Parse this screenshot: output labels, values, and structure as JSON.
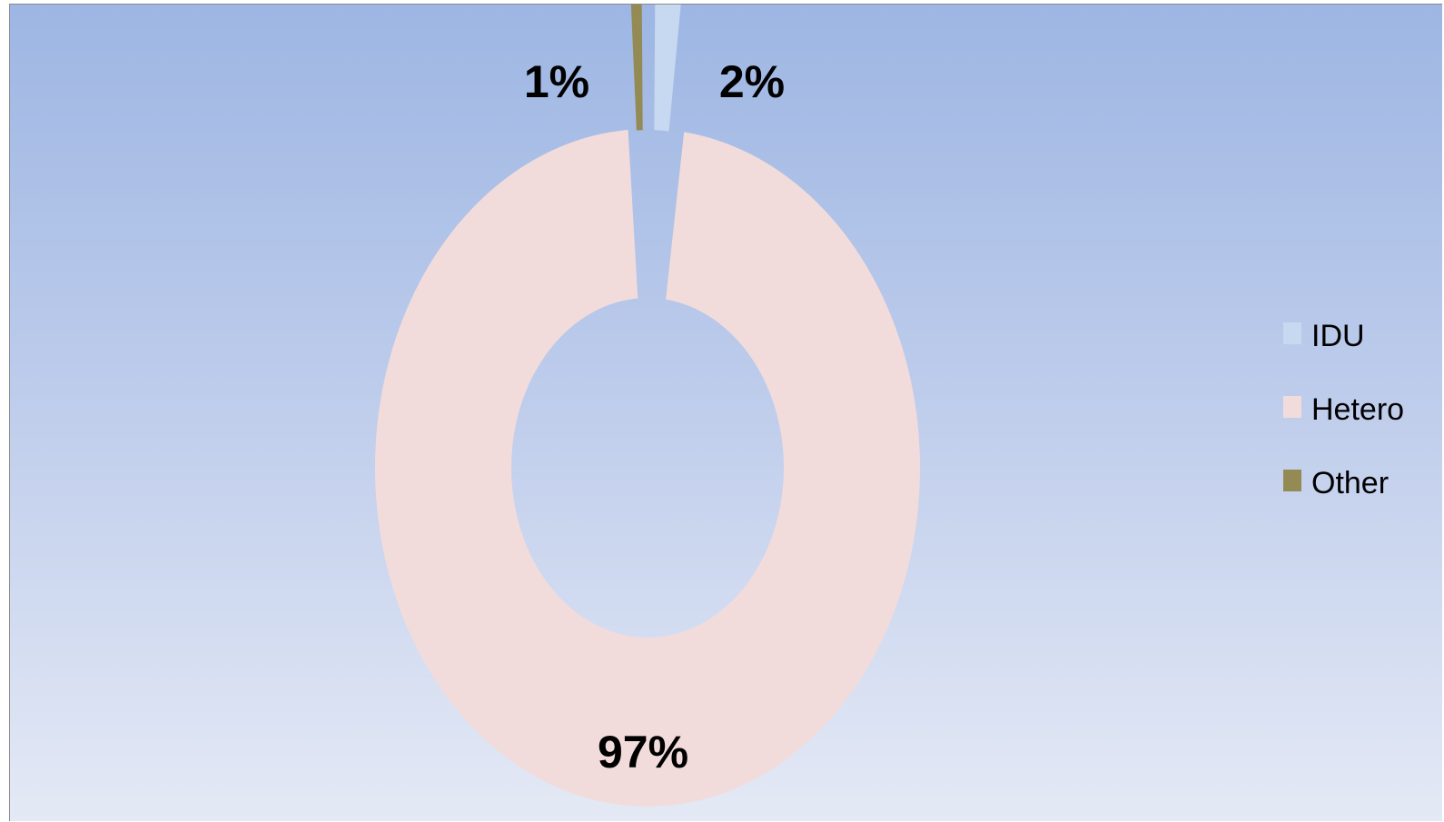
{
  "chart_data": {
    "type": "pie",
    "subtype": "doughnut",
    "categories": [
      "IDU",
      "Hetero",
      "Other"
    ],
    "values": [
      2,
      97,
      1
    ],
    "value_labels": [
      "2%",
      "97%",
      "1%"
    ],
    "colors": [
      "#c6d9f1",
      "#f2dcdb",
      "#948a54"
    ],
    "exploded": [
      "IDU",
      "Other"
    ],
    "legend": {
      "position": "right",
      "entries": [
        "IDU",
        "Hetero",
        "Other"
      ]
    },
    "title": "",
    "background": "gradient-blue"
  }
}
